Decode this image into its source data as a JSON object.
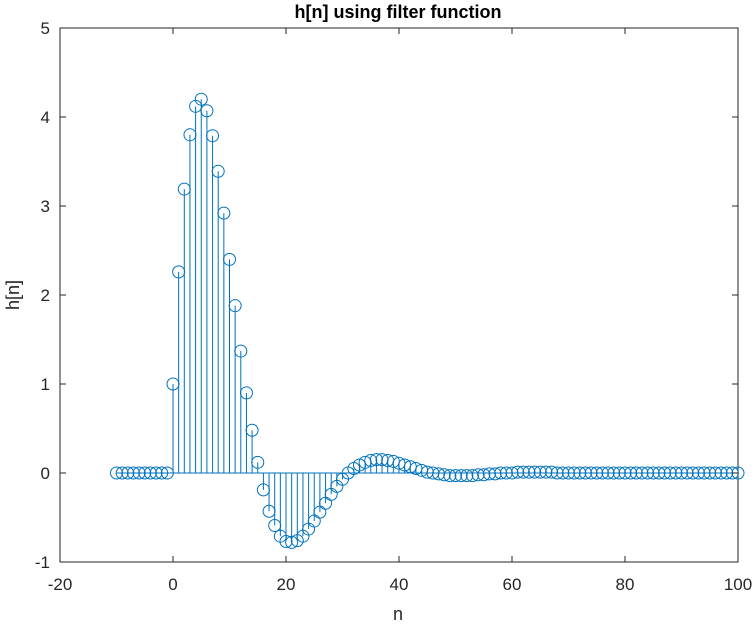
{
  "chart_data": {
    "type": "stem",
    "title": "h[n] using filter function",
    "xlabel": "n",
    "ylabel": "h[n]",
    "xlim": [
      -20,
      100
    ],
    "ylim": [
      -1,
      5
    ],
    "xticks": [
      -20,
      0,
      20,
      40,
      60,
      80,
      100
    ],
    "yticks": [
      -1,
      0,
      1,
      2,
      3,
      4,
      5
    ],
    "xtick_labels": [
      "-20",
      "0",
      "20",
      "40",
      "60",
      "80",
      "100"
    ],
    "ytick_labels": [
      "-1",
      "0",
      "1",
      "2",
      "3",
      "4",
      "5"
    ],
    "grid": false,
    "color": "#0072BD",
    "series": [
      {
        "x": [
          -10,
          -9,
          -8,
          -7,
          -6,
          -5,
          -4,
          -3,
          -2,
          -1,
          0,
          1,
          2,
          3,
          4,
          5,
          6,
          7,
          8,
          9,
          10,
          11,
          12,
          13,
          14,
          15,
          16,
          17,
          18,
          19,
          20,
          21,
          22,
          23,
          24,
          25,
          26,
          27,
          28,
          29,
          30,
          31,
          32,
          33,
          34,
          35,
          36,
          37,
          38,
          39,
          40,
          41,
          42,
          43,
          44,
          45,
          46,
          47,
          48,
          49,
          50,
          51,
          52,
          53,
          54,
          55,
          56,
          57,
          58,
          59,
          60,
          61,
          62,
          63,
          64,
          65,
          66,
          67,
          68,
          69,
          70,
          71,
          72,
          73,
          74,
          75,
          76,
          77,
          78,
          79,
          80,
          81,
          82,
          83,
          84,
          85,
          86,
          87,
          88,
          89,
          90,
          91,
          92,
          93,
          94,
          95,
          96,
          97,
          98,
          99,
          100
        ],
        "y": [
          0,
          0,
          0,
          0,
          0,
          0,
          0,
          0,
          0,
          0,
          1.0,
          2.26,
          3.19,
          3.8,
          4.12,
          4.2,
          4.07,
          3.79,
          3.39,
          2.92,
          2.4,
          1.88,
          1.37,
          0.9,
          0.48,
          0.12,
          -0.19,
          -0.43,
          -0.59,
          -0.71,
          -0.77,
          -0.78,
          -0.76,
          -0.71,
          -0.63,
          -0.54,
          -0.44,
          -0.34,
          -0.24,
          -0.15,
          -0.07,
          0.0,
          0.05,
          0.09,
          0.12,
          0.14,
          0.15,
          0.15,
          0.14,
          0.13,
          0.11,
          0.09,
          0.07,
          0.05,
          0.03,
          0.01,
          0.0,
          -0.01,
          -0.02,
          -0.03,
          -0.03,
          -0.03,
          -0.03,
          -0.03,
          -0.02,
          -0.02,
          -0.01,
          -0.01,
          0.0,
          0.0,
          0.0,
          0.01,
          0.01,
          0.01,
          0.01,
          0.01,
          0.01,
          0.01,
          0.0,
          0.0,
          0.0,
          0.0,
          0.0,
          0.0,
          0.0,
          0.0,
          0.0,
          0.0,
          0.0,
          0.0,
          0.0,
          0.0,
          0.0,
          0.0,
          0.0,
          0.0,
          0.0,
          0.0,
          0.0,
          0.0,
          0.0,
          0.0,
          0.0,
          0.0,
          0.0,
          0.0,
          0.0,
          0.0,
          0.0,
          0.0,
          0.0
        ]
      }
    ]
  }
}
